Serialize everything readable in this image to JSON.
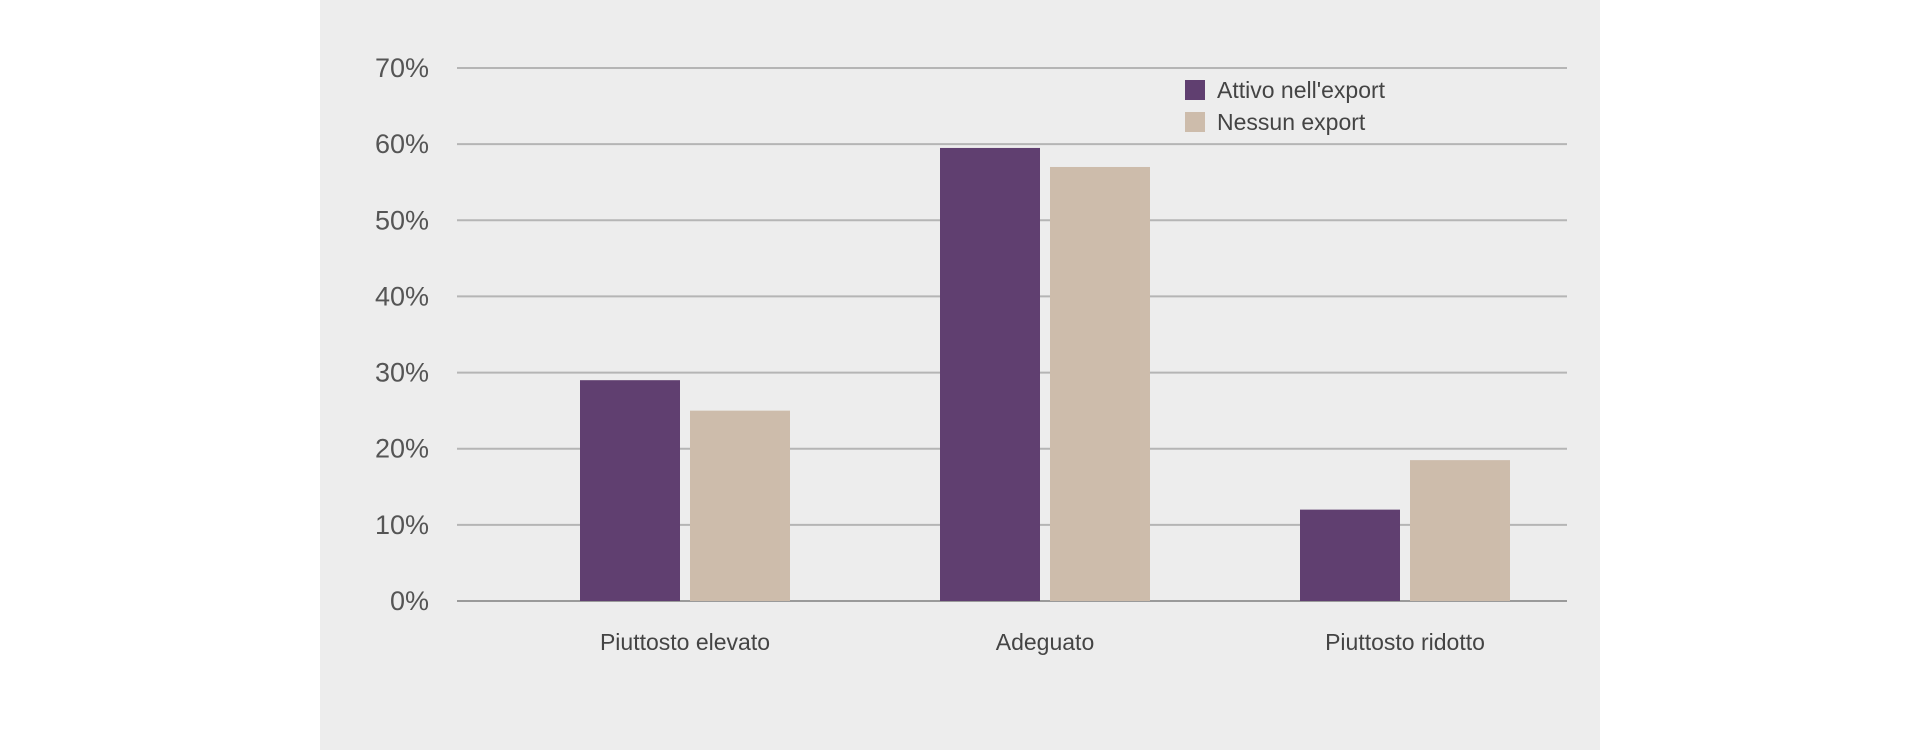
{
  "chart_data": {
    "type": "bar",
    "categories": [
      "Piuttosto elevato",
      "Adeguato",
      "Piuttosto ridotto"
    ],
    "series": [
      {
        "name": "Attivo nell'export",
        "color": "#603f70",
        "values": [
          29,
          59.5,
          12
        ]
      },
      {
        "name": "Nessun export",
        "color": "#cdbcab",
        "values": [
          25,
          57,
          18.5
        ]
      }
    ],
    "yticks": [
      "0%",
      "10%",
      "20%",
      "30%",
      "40%",
      "50%",
      "60%",
      "70%"
    ],
    "ylim": [
      0,
      70
    ],
    "grid": true,
    "legend_position": "top-right",
    "title": "",
    "xlabel": "",
    "ylabel": ""
  }
}
